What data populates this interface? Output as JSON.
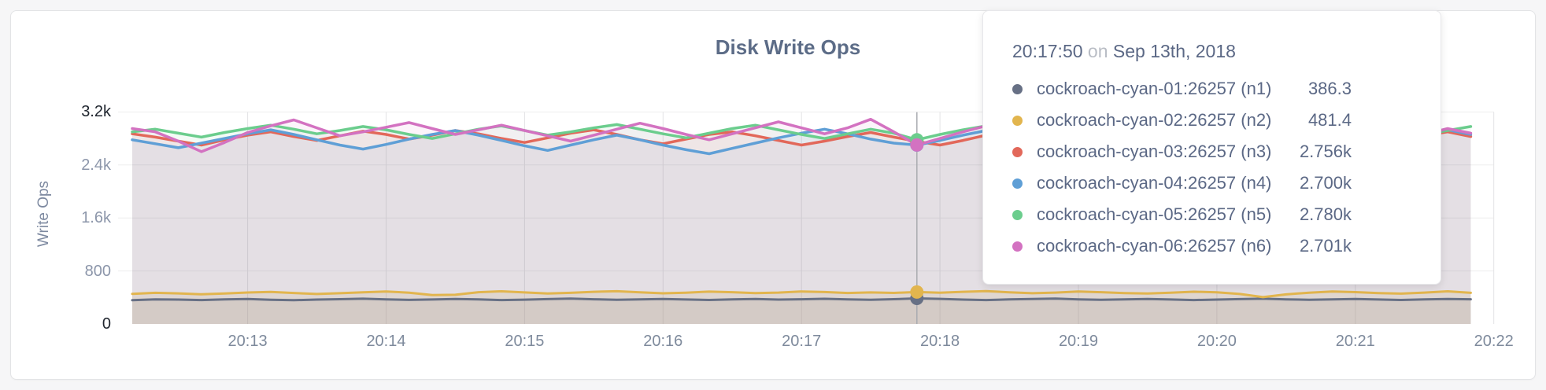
{
  "tooltip": {
    "time": "20:17:50",
    "on_word": "on",
    "date": "Sep 13th, 2018"
  },
  "chart_data": {
    "type": "area",
    "title": "Disk Write Ops",
    "xlabel": "",
    "ylabel": "Write Ops",
    "ylim": [
      0,
      3200
    ],
    "grid": true,
    "legend_position": "tooltip",
    "x_domain_sec": [
      730,
      1330
    ],
    "x_start_sec": 730,
    "x_step_sec": 10,
    "x_ticks": [
      {
        "label": "20:13",
        "sec": 780
      },
      {
        "label": "20:14",
        "sec": 840
      },
      {
        "label": "20:15",
        "sec": 900
      },
      {
        "label": "20:16",
        "sec": 960
      },
      {
        "label": "20:17",
        "sec": 1020
      },
      {
        "label": "20:18",
        "sec": 1080
      },
      {
        "label": "20:19",
        "sec": 1140
      },
      {
        "label": "20:20",
        "sec": 1200
      },
      {
        "label": "20:21",
        "sec": 1260
      },
      {
        "label": "20:22",
        "sec": 1320
      }
    ],
    "y_ticks": [
      {
        "label": "0",
        "value": 0,
        "strong": true
      },
      {
        "label": "800",
        "value": 800,
        "strong": false
      },
      {
        "label": "1.6k",
        "value": 1600,
        "strong": false
      },
      {
        "label": "2.4k",
        "value": 2400,
        "strong": false
      },
      {
        "label": "3.2k",
        "value": 3200,
        "strong": true
      }
    ],
    "hover": {
      "sec": 1070,
      "index": 34
    },
    "series": [
      {
        "id": "n1",
        "name": "cockroach-cyan-01:26257 (n1)",
        "hover_label": "386.3",
        "color": "#677085",
        "fill_opacity": 0.12,
        "values": [
          358,
          372,
          368,
          361,
          370,
          377,
          365,
          359,
          368,
          374,
          381,
          372,
          363,
          369,
          377,
          370,
          361,
          367,
          375,
          382,
          373,
          365,
          371,
          378,
          369,
          362,
          370,
          376,
          368,
          373,
          380,
          371,
          364,
          374,
          386.3,
          379,
          368,
          361,
          370,
          377,
          383,
          372,
          364,
          371,
          378,
          369,
          361,
          368,
          375,
          381,
          372,
          365,
          370,
          377,
          369,
          362,
          371,
          378,
          373
        ]
      },
      {
        "id": "n2",
        "name": "cockroach-cyan-02:26257 (n2)",
        "hover_label": "481.4",
        "color": "#e2b54e",
        "fill_opacity": 0.16,
        "values": [
          455,
          470,
          462,
          448,
          460,
          475,
          483,
          468,
          452,
          464,
          478,
          490,
          472,
          436,
          440,
          480,
          492,
          476,
          461,
          470,
          486,
          494,
          478,
          463,
          472,
          488,
          479,
          465,
          473,
          490,
          482,
          468,
          476,
          469,
          481.4,
          472,
          486,
          495,
          478,
          464,
          473,
          489,
          480,
          467,
          459,
          472,
          487,
          478,
          452,
          405,
          446,
          472,
          490,
          481,
          466,
          458,
          474,
          492,
          470
        ]
      },
      {
        "id": "n3",
        "name": "cockroach-cyan-03:26257 (n3)",
        "hover_label": "2.756k",
        "color": "#e2685a",
        "fill_opacity": 0.08,
        "values": [
          2870,
          2820,
          2760,
          2700,
          2780,
          2850,
          2900,
          2830,
          2770,
          2840,
          2910,
          2860,
          2790,
          2850,
          2920,
          2870,
          2800,
          2740,
          2810,
          2880,
          2930,
          2860,
          2780,
          2720,
          2790,
          2860,
          2900,
          2840,
          2770,
          2700,
          2760,
          2830,
          2890,
          2820,
          2756,
          2700,
          2770,
          2850,
          2910,
          2840,
          2760,
          2690,
          2750,
          2830,
          2900,
          2960,
          2880,
          2800,
          2730,
          2790,
          2860,
          2920,
          2850,
          2770,
          2700,
          2760,
          2840,
          2900,
          2830
        ]
      },
      {
        "id": "n4",
        "name": "cockroach-cyan-04:26257 (n4)",
        "hover_label": "2.700k",
        "color": "#5f9fd6",
        "fill_opacity": 0.08,
        "values": [
          2780,
          2720,
          2660,
          2730,
          2800,
          2870,
          2930,
          2860,
          2780,
          2700,
          2640,
          2710,
          2790,
          2860,
          2920,
          2850,
          2770,
          2690,
          2620,
          2700,
          2780,
          2850,
          2780,
          2700,
          2630,
          2570,
          2650,
          2730,
          2810,
          2880,
          2940,
          2870,
          2790,
          2730,
          2700,
          2770,
          2850,
          2920,
          2990,
          2910,
          2830,
          2750,
          2680,
          2760,
          2840,
          2910,
          2840,
          2760,
          2690,
          2770,
          2850,
          2920,
          2850,
          2770,
          2700,
          2780,
          2860,
          2930,
          2860
        ]
      },
      {
        "id": "n5",
        "name": "cockroach-cyan-05:26257 (n5)",
        "hover_label": "2.780k",
        "color": "#6bcd8d",
        "fill_opacity": 0.08,
        "values": [
          2900,
          2940,
          2880,
          2820,
          2890,
          2950,
          3000,
          2940,
          2870,
          2920,
          2980,
          2930,
          2860,
          2800,
          2870,
          2940,
          2990,
          2920,
          2850,
          2900,
          2960,
          3010,
          2940,
          2870,
          2810,
          2880,
          2950,
          3000,
          2930,
          2860,
          2800,
          2870,
          2940,
          2880,
          2780,
          2860,
          2930,
          2990,
          2920,
          2850,
          2900,
          2960,
          3020,
          2950,
          2880,
          2820,
          2890,
          2950,
          3010,
          2940,
          2870,
          2810,
          2880,
          2940,
          3000,
          2930,
          2860,
          2920,
          2980
        ]
      },
      {
        "id": "n6",
        "name": "cockroach-cyan-06:26257 (n6)",
        "hover_label": "2.701k",
        "color": "#d372c1",
        "fill_opacity": 0.08,
        "values": [
          2950,
          2900,
          2760,
          2600,
          2740,
          2890,
          2990,
          3080,
          2960,
          2840,
          2900,
          2970,
          3040,
          2950,
          2860,
          2930,
          3000,
          2920,
          2840,
          2760,
          2850,
          2940,
          3030,
          2950,
          2860,
          2780,
          2870,
          2960,
          3050,
          2960,
          2870,
          2960,
          3090,
          2900,
          2701,
          2800,
          2900,
          2990,
          2900,
          2810,
          2900,
          2980,
          2890,
          2800,
          2880,
          2960,
          3040,
          2950,
          2860,
          2780,
          2860,
          2950,
          3030,
          2940,
          2850,
          2770,
          2860,
          2950,
          2880
        ]
      }
    ]
  }
}
